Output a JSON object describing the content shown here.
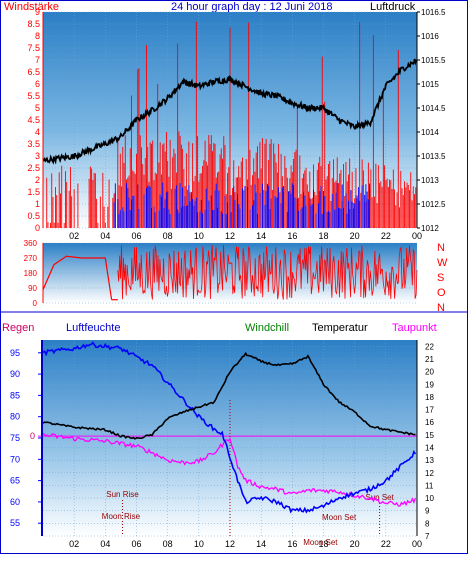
{
  "header": {
    "wind_label": "Windstärke",
    "title": "24 hour graph day : 12 Juni 2018",
    "pressure_label": "Luftdruck"
  },
  "mid_header": {
    "regen": "Regen",
    "luftfeuchte": "Luftfeuchte",
    "windchill": "Windchill",
    "temperatur": "Temperatur",
    "taupunkt": "Taupunkt"
  },
  "colors": {
    "frame": "#0000cc",
    "wind": "#ff0000",
    "wind_gust": "#0000ff",
    "pressure": "#000000",
    "humidity": "#0000ff",
    "windchill": "#008000",
    "dewpoint": "#ff00ff",
    "rain": "#cc0066",
    "sky_top": "#2f83c8",
    "sky_bottom": "#ffffff"
  },
  "chart_data": [
    {
      "type": "bar",
      "panel": "wind_pressure",
      "x_ticks": [
        "02",
        "04",
        "06",
        "08",
        "10",
        "12",
        "14",
        "16",
        "18",
        "20",
        "22",
        "00"
      ],
      "left_axis": {
        "label": "Windstärke",
        "ticks": [
          "0",
          "0.5",
          "1",
          "1.5",
          "2",
          "2.5",
          "3",
          "3.5",
          "4",
          "4.5",
          "5",
          "5.5",
          "6",
          "6.5",
          "7",
          "7.5",
          "8",
          "8.5",
          "9"
        ],
        "ylim": [
          0,
          9
        ]
      },
      "right_axis": {
        "label": "Luftdruck",
        "ticks": [
          "1012",
          "1012.5",
          "1013",
          "1013.5",
          "1014",
          "1014.5",
          "1015",
          "1015.5",
          "1016",
          "1016.5"
        ],
        "ylim": [
          1012,
          1016.5
        ]
      },
      "pressure_keypoints": {
        "x": [
          0,
          2,
          4,
          5,
          6,
          7,
          8,
          9,
          10,
          11,
          12,
          13,
          14,
          15,
          16,
          17,
          18,
          19,
          20,
          21,
          22,
          23,
          24
        ],
        "y": [
          1013.4,
          1013.5,
          1013.75,
          1013.9,
          1014.25,
          1014.45,
          1014.7,
          1015.05,
          1014.95,
          1015.05,
          1015.1,
          1014.95,
          1014.8,
          1014.75,
          1014.6,
          1014.5,
          1014.5,
          1014.25,
          1014.1,
          1014.2,
          1014.95,
          1015.3,
          1015.5
        ]
      },
      "wind_speed_level": {
        "x": [
          0,
          4.8,
          14,
          20,
          22,
          24
        ],
        "y": [
          2.2,
          3.5,
          3.2,
          2.5,
          2.2,
          2.0
        ]
      },
      "gust_level": {
        "x": [
          4.5,
          18,
          21
        ],
        "y": [
          1.9,
          1.9,
          1.9
        ]
      }
    },
    {
      "type": "line",
      "panel": "wind_direction",
      "y_ticks": [
        "0",
        "90",
        "180",
        "270",
        "360"
      ],
      "ylim": [
        0,
        360
      ],
      "compass": [
        "N",
        "W",
        "S",
        "O",
        "N"
      ],
      "segments": [
        {
          "x": [
            0,
            0.7,
            1.5,
            2.5,
            4.0,
            4.4
          ],
          "y": [
            80,
            230,
            280,
            270,
            270,
            20
          ]
        },
        {
          "x": [
            4.4,
            4.8
          ],
          "y": [
            20,
            20
          ]
        }
      ],
      "noisy_from_hour": 4.8
    },
    {
      "type": "line",
      "panel": "temp_humidity",
      "left_axis": {
        "label": "Luftfeuchte",
        "ticks": [
          "55",
          "60",
          "65",
          "70",
          "75",
          "80",
          "85",
          "90",
          "95"
        ],
        "ylim": [
          52,
          98
        ]
      },
      "right_axis": {
        "label": "Temperatur",
        "ticks": [
          "7",
          "8",
          "9",
          "10",
          "11",
          "12",
          "13",
          "14",
          "15",
          "16",
          "17",
          "18",
          "19",
          "20",
          "21",
          "22"
        ],
        "ylim": [
          7,
          22.5
        ]
      },
      "humidity": {
        "x": [
          0,
          2,
          3,
          5,
          6,
          7,
          8,
          9,
          10,
          11,
          11.5,
          12.5,
          13,
          14,
          15,
          16,
          17,
          18,
          19,
          20,
          21,
          22,
          24
        ],
        "y": [
          95,
          96,
          97,
          96,
          94,
          92,
          88,
          84,
          80,
          77,
          76,
          65,
          60,
          61,
          60,
          58,
          58,
          59,
          61,
          62,
          63,
          65,
          72
        ]
      },
      "temperature": {
        "x": [
          0,
          2,
          4,
          5,
          6,
          7,
          8,
          9,
          10,
          11,
          12,
          13,
          14,
          15,
          16,
          17,
          18,
          19,
          20,
          21,
          22,
          23,
          24
        ],
        "y": [
          16.0,
          15.6,
          15.4,
          14.9,
          14.7,
          15.0,
          16.3,
          16.8,
          17.2,
          17.6,
          20.0,
          21.4,
          20.8,
          20.5,
          20.6,
          21.2,
          19.0,
          17.6,
          16.8,
          15.7,
          15.4,
          15.2,
          15.0
        ]
      },
      "dewpoint": {
        "x": [
          0,
          2,
          4,
          6,
          7,
          8,
          9,
          10,
          11,
          12,
          12.5,
          13,
          14,
          15,
          16,
          17,
          18,
          19,
          20,
          21,
          22,
          23,
          24
        ],
        "y": [
          15.0,
          14.7,
          14.5,
          14.1,
          13.6,
          13.0,
          12.8,
          12.9,
          13.6,
          14.8,
          12.5,
          11.4,
          10.9,
          10.7,
          10.3,
          10.6,
          10.6,
          10.5,
          10.2,
          10.0,
          9.6,
          9.5,
          9.9
        ]
      },
      "annotations": {
        "sun_rise": "Sun Rise",
        "sun_set": "Sun Set",
        "moon_rise": "Moon Rise",
        "moon_set": "Moon Set",
        "overlap": "Moon Set"
      },
      "annotation_hours": {
        "sun_rise": 5.1,
        "sun_set": 21.6,
        "moon_rise": 5.0,
        "moon_set": 19.0
      },
      "rain_marker_value": "0"
    }
  ]
}
